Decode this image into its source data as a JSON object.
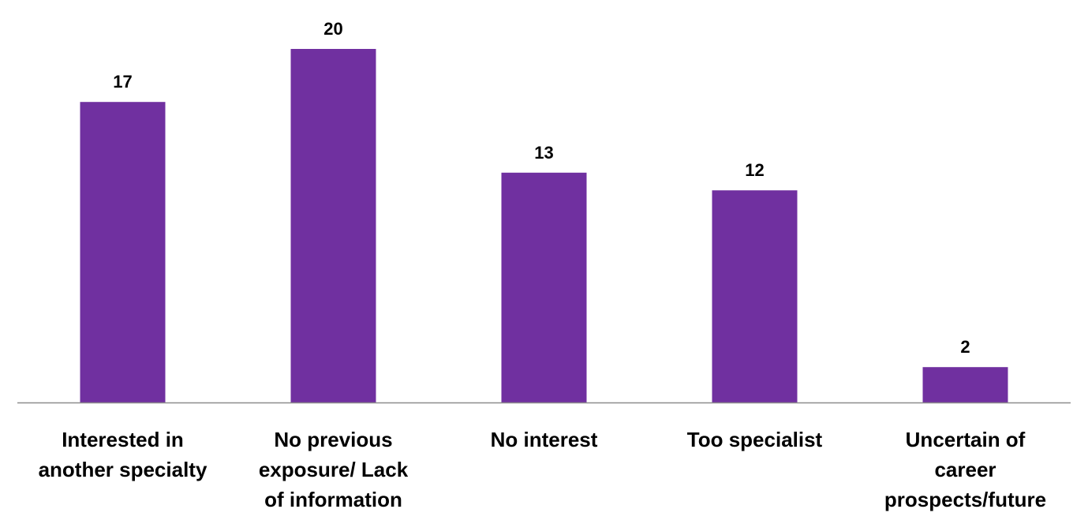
{
  "chart_data": {
    "type": "bar",
    "categories": [
      [
        "Interested in",
        "another specialty"
      ],
      [
        "No previous",
        "exposure/ Lack",
        "of information"
      ],
      [
        "No interest"
      ],
      [
        "Too specialist"
      ],
      [
        "Uncertain of",
        "career",
        "prospects/future"
      ]
    ],
    "values": [
      17,
      20,
      13,
      12,
      2
    ],
    "title": "",
    "xlabel": "",
    "ylabel": "",
    "ylim": [
      0,
      20
    ],
    "grid": false,
    "legend": "none",
    "bar_color": "#7030A0",
    "axis_color": "#8C8C8C"
  }
}
